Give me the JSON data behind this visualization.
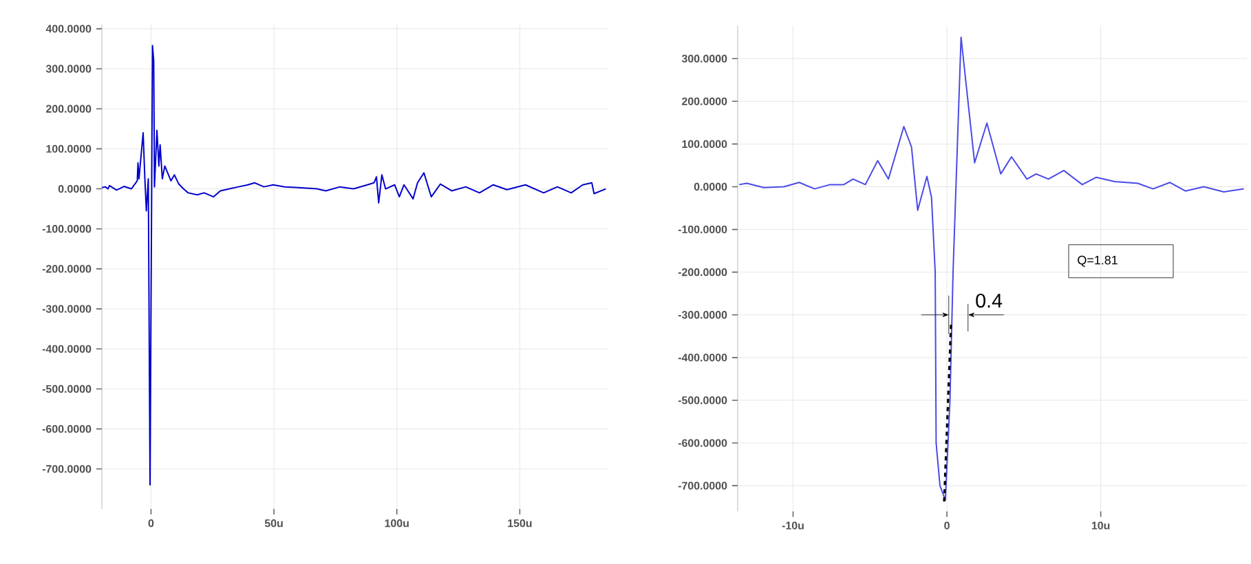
{
  "chart_data": [
    {
      "type": "line",
      "xlim": [
        -20,
        186
      ],
      "ylim": [
        -800,
        410
      ],
      "xticks": [
        0,
        {
          "value": 50,
          "label": "50u"
        },
        {
          "value": 100,
          "label": "100u"
        },
        {
          "value": 150,
          "label": "150u"
        }
      ],
      "yticks": [
        {
          "value": -700,
          "label": "-700.0000"
        },
        {
          "value": -600,
          "label": "-600.0000"
        },
        {
          "value": -500,
          "label": "-500.0000"
        },
        {
          "value": -400,
          "label": "-400.0000"
        },
        {
          "value": -300,
          "label": "-300.0000"
        },
        {
          "value": -200,
          "label": "-200.0000"
        },
        {
          "value": -100,
          "label": "-100.0000"
        },
        {
          "value": 0,
          "label": "0.0000"
        },
        {
          "value": 100,
          "label": "100.0000"
        },
        {
          "value": 200,
          "label": "200.0000"
        },
        {
          "value": 300,
          "label": "300.0000"
        },
        {
          "value": 400,
          "label": "400.0000"
        }
      ],
      "grid": true,
      "marker": "none",
      "series": [
        {
          "color": "#0000cc",
          "line_style": "solid",
          "x": [
            -20,
            -18.6,
            -17.5,
            -16.9,
            -14,
            -11,
            -8,
            -5.6,
            -5.3,
            -4.9,
            -3.2,
            -2.5,
            -1.9,
            -1.1,
            -0.4,
            0.6,
            1.1,
            1.4,
            2.4,
            3.2,
            3.7,
            4.6,
            5.6,
            7.1,
            8.1,
            9.5,
            11.3,
            13.2,
            15.1,
            18.8,
            21.6,
            25.4,
            28.2,
            31.9,
            35.6,
            39.4,
            42.2,
            45.9,
            49.7,
            54.4,
            60,
            67.5,
            71.1,
            76.8,
            82.4,
            88,
            90.7,
            91.7,
            92.6,
            93.9,
            95.4,
            99.1,
            101,
            102.9,
            106.6,
            108.4,
            111,
            114,
            117.7,
            122.3,
            128,
            133.6,
            139.2,
            144.8,
            152.3,
            159.7,
            165.3,
            170.9,
            175.6,
            179.3,
            180.2,
            185
          ],
          "values": [
            3,
            5,
            0,
            8,
            -3,
            6,
            0,
            20,
            65,
            25,
            140,
            25,
            -55,
            25,
            -740,
            358,
            320,
            5,
            146,
            57,
            110,
            25,
            57,
            35,
            20,
            35,
            12,
            0,
            -10,
            -15,
            -10,
            -20,
            -5,
            0,
            5,
            10,
            15,
            5,
            10,
            5,
            3,
            0,
            -5,
            5,
            0,
            10,
            15,
            30,
            -35,
            35,
            0,
            10,
            -20,
            10,
            -25,
            15,
            40,
            -20,
            12,
            -5,
            5,
            -10,
            10,
            -2,
            10,
            -10,
            5,
            -10,
            10,
            15,
            -12,
            0
          ]
        }
      ]
    },
    {
      "type": "line",
      "xlim": [
        -13.6,
        19.5
      ],
      "ylim": [
        -760,
        377
      ],
      "xticks": [
        {
          "value": -10,
          "label": "-10u"
        },
        0,
        {
          "value": 10,
          "label": "10u"
        }
      ],
      "yticks": [
        {
          "value": -700,
          "label": "-700.0000"
        },
        {
          "value": -600,
          "label": "-600.0000"
        },
        {
          "value": -500,
          "label": "-500.0000"
        },
        {
          "value": -400,
          "label": "-400.0000"
        },
        {
          "value": -300,
          "label": "-300.0000"
        },
        {
          "value": -200,
          "label": "-200.0000"
        },
        {
          "value": -100,
          "label": "-100.0000"
        },
        {
          "value": 0,
          "label": "0.0000"
        },
        {
          "value": 100,
          "label": "100.0000"
        },
        {
          "value": 200,
          "label": "200.0000"
        },
        {
          "value": 300,
          "label": "300.0000"
        }
      ],
      "grid": true,
      "marker": "none",
      "annotations": [
        "Q=1.81",
        {
          "text": "0.4",
          "x": 0.3,
          "y": -300
        }
      ],
      "series": [
        {
          "color": "#4a4ae6",
          "line_style": "solid",
          "x": [
            -13.5,
            -13.0,
            -11.9,
            -10.6,
            -9.6,
            -8.6,
            -7.6,
            -6.7,
            -6.1,
            -5.3,
            -4.5,
            -3.8,
            -2.8,
            -2.3,
            -1.9,
            -1.3,
            -1.0,
            -0.76,
            -0.7,
            -0.45,
            -0.1,
            0.2,
            0.4,
            0.92,
            1.8,
            2.6,
            3.5,
            4.2,
            5.2,
            5.8,
            6.6,
            7.6,
            8.8,
            9.7,
            10.9,
            12.4,
            13.4,
            14.5,
            15.5,
            16.7,
            18.0,
            19.3
          ],
          "values": [
            5,
            8,
            -2,
            0,
            10,
            -5,
            5,
            5,
            18,
            5,
            61,
            18,
            141,
            93,
            -55,
            24,
            -25,
            -200,
            -600,
            -700,
            -734,
            -500,
            -200,
            350,
            56,
            149,
            30,
            70,
            18,
            30,
            18,
            38,
            5,
            22,
            12,
            8,
            -5,
            10,
            -10,
            0,
            -12,
            -5
          ]
        },
        {
          "color": "#000000",
          "line_style": "dashed",
          "x": [
            -0.18,
            0.27
          ],
          "values": [
            -737,
            -319
          ]
        }
      ]
    }
  ]
}
